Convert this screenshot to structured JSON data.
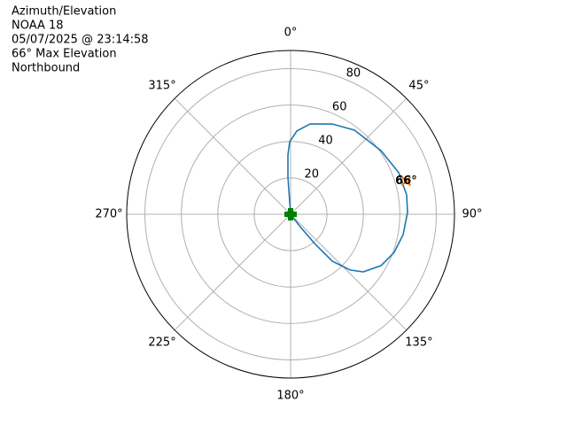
{
  "chart_data": {
    "type": "polar",
    "title": [
      "Azimuth/Elevation",
      "NOAA 18",
      "05/07/2025 @ 23:14:58",
      "66° Max Elevation",
      "Northbound"
    ],
    "theta_zero": "N",
    "theta_direction": "clockwise",
    "grid": true,
    "rlim": [
      0,
      90
    ],
    "rticks": [
      20,
      40,
      60,
      80
    ],
    "thetaticks": [
      {
        "value": 0,
        "label": "0°"
      },
      {
        "value": 45,
        "label": "45°"
      },
      {
        "value": 90,
        "label": "90°"
      },
      {
        "value": 135,
        "label": "135°"
      },
      {
        "value": 180,
        "label": "180°"
      },
      {
        "value": 225,
        "label": "225°"
      },
      {
        "value": 270,
        "label": "270°"
      },
      {
        "value": 315,
        "label": "315°"
      }
    ],
    "series": [
      {
        "color": "#1f77b4",
        "theta": [
          356,
          355.9,
          357.4,
          359.3,
          4.3,
          12.2,
          24.7,
          37.2,
          54.8,
          68.9,
          80.5,
          89.1,
          100.3,
          110.2,
          119.6,
          128.4,
          133.2,
          138.4,
          140.7,
          142.4,
          143
        ],
        "r": [
          0,
          20.5,
          32.6,
          39.9,
          45.9,
          50.7,
          54.6,
          58.0,
          60.7,
          63.6,
          64.6,
          64.2,
          62.8,
          60.6,
          57.1,
          50.9,
          44.7,
          34.5,
          20.7,
          8,
          0
        ]
      }
    ],
    "max_point": {
      "theta": 74,
      "r": 66,
      "color": "#ff7f0e",
      "label": "66°"
    },
    "start_point": {
      "theta": 0,
      "r": 0,
      "color": "#008000"
    }
  }
}
